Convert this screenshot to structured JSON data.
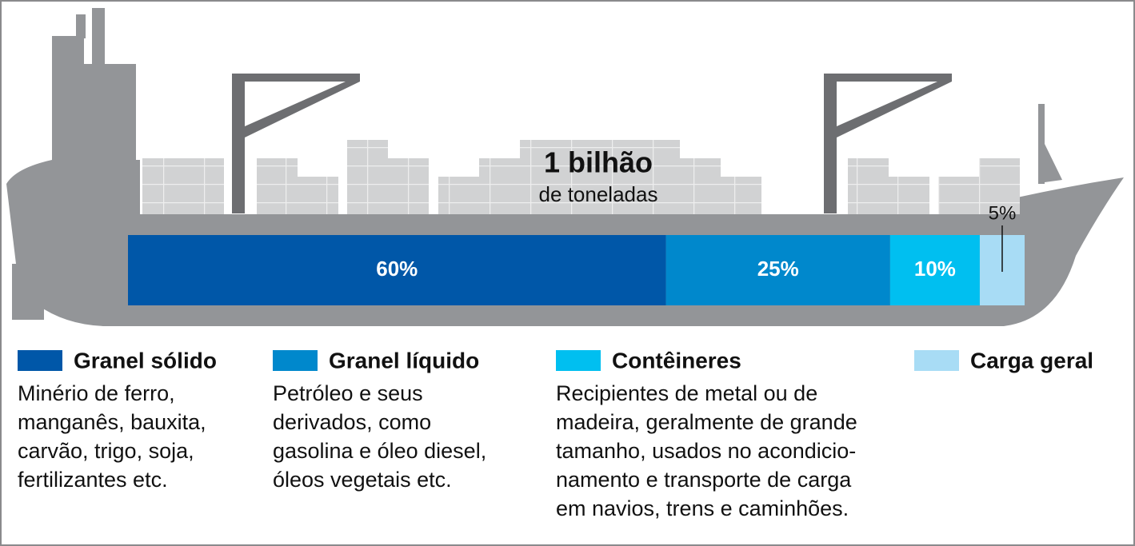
{
  "chart_data": {
    "type": "bar",
    "title": "1 bilhão",
    "subtitle": "de toneladas",
    "xlim": [
      0,
      100
    ],
    "series": [
      {
        "name": "Granel sólido",
        "color": "#0057a8",
        "values": [
          60
        ],
        "value_labels": [
          "60%"
        ],
        "description": [
          "Minério de ferro,",
          "manganês, bauxita,",
          "carvão, trigo, soja,",
          "fertilizantes etc."
        ]
      },
      {
        "name": "Granel líquido",
        "color": "#0088cc",
        "values": [
          25
        ],
        "value_labels": [
          "25%"
        ],
        "description": [
          "Petróleo e seus",
          "derivados, como",
          "gasolina e óleo diesel,",
          "óleos vegetais etc."
        ]
      },
      {
        "name": "Contêineres",
        "color": "#00bff0",
        "values": [
          10
        ],
        "value_labels": [
          "10%"
        ],
        "description": [
          "Recipientes de metal ou de",
          "madeira, geralmente de grande",
          "tamanho, usados no acondicio-",
          "namento e transporte de carga",
          "em navios, trens e caminhões."
        ]
      },
      {
        "name": "Carga geral",
        "color": "#a8dcf5",
        "values": [
          5
        ],
        "value_labels": [
          "5%"
        ],
        "description": []
      }
    ]
  }
}
